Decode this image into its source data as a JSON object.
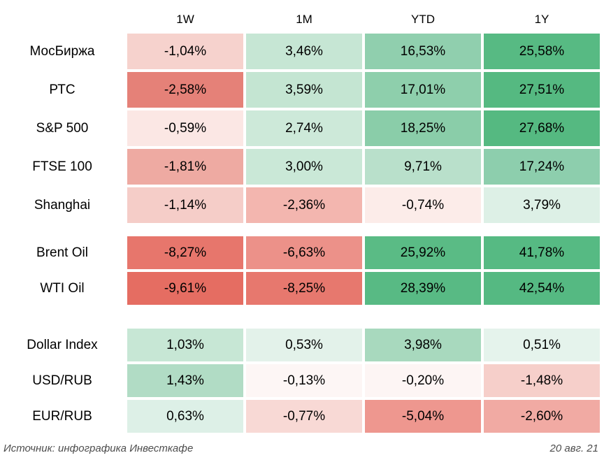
{
  "footer": {
    "source": "Источник: инфографика Инвесткафе",
    "date": "20 авг. 21"
  },
  "colors": {
    "background": "#ffffff",
    "cell_text": "#000000",
    "footer_text": "#4d4d4d",
    "positive_strong": "#55b981",
    "negative_strong": "#e56d62",
    "neutral": "#ffffff"
  },
  "chart_data": {
    "type": "heatmap",
    "title": "",
    "columns": [
      "1W",
      "1M",
      "YTD",
      "1Y"
    ],
    "rows": [
      {
        "label": "МосБиржа",
        "group": "indices",
        "values": [
          "-1,04%",
          "3,46%",
          "16,53%",
          "25,58%"
        ],
        "colors": [
          "#f6d2cd",
          "#c6e6d4",
          "#90cfae",
          "#57ba83"
        ]
      },
      {
        "label": "РТС",
        "group": "indices",
        "values": [
          "-2,58%",
          "3,59%",
          "17,01%",
          "27,51%"
        ],
        "colors": [
          "#e58178",
          "#c4e5d2",
          "#8ecfac",
          "#55b981"
        ]
      },
      {
        "label": "S&P 500",
        "group": "indices",
        "values": [
          "-0,59%",
          "2,74%",
          "18,25%",
          "27,68%"
        ],
        "colors": [
          "#fbe7e4",
          "#cde9d9",
          "#8acda9",
          "#55b981"
        ]
      },
      {
        "label": "FTSE 100",
        "group": "indices",
        "values": [
          "-1,81%",
          "3,00%",
          "9,71%",
          "17,24%"
        ],
        "colors": [
          "#eeaaa2",
          "#cae8d7",
          "#b9e0cb",
          "#8dcead"
        ]
      },
      {
        "label": "Shanghai",
        "group": "indices",
        "values": [
          "-1,14%",
          "-2,36%",
          "-0,74%",
          "3,79%"
        ],
        "colors": [
          "#f5cdc8",
          "#f3b6af",
          "#fcece9",
          "#ddf0e6"
        ]
      },
      {
        "label": "Brent Oil",
        "group": "commodities",
        "values": [
          "-8,27%",
          "-6,63%",
          "25,92%",
          "41,78%"
        ],
        "colors": [
          "#e7766c",
          "#ec9189",
          "#5abb85",
          "#56ba83"
        ]
      },
      {
        "label": "WTI Oil",
        "group": "commodities",
        "values": [
          "-9,61%",
          "-8,25%",
          "28,39%",
          "42,54%"
        ],
        "colors": [
          "#e56d62",
          "#e7786e",
          "#58ba84",
          "#55b982"
        ]
      },
      {
        "label": "Dollar Index",
        "group": "currencies",
        "values": [
          "1,03%",
          "0,53%",
          "3,98%",
          "0,51%"
        ],
        "colors": [
          "#c7e7d5",
          "#e3f2ea",
          "#a8d9be",
          "#e5f3ec"
        ]
      },
      {
        "label": "USD/RUB",
        "group": "currencies",
        "values": [
          "1,43%",
          "-0,13%",
          "-0,20%",
          "-1,48%"
        ],
        "colors": [
          "#b1dcc5",
          "#fdf6f5",
          "#fdf5f4",
          "#f6cfca"
        ]
      },
      {
        "label": "EUR/RUB",
        "group": "currencies",
        "values": [
          "0,63%",
          "-0,77%",
          "-5,04%",
          "-2,60%"
        ],
        "colors": [
          "#ddf0e7",
          "#f8d9d5",
          "#ee978f",
          "#f1aaa3"
        ]
      }
    ]
  }
}
